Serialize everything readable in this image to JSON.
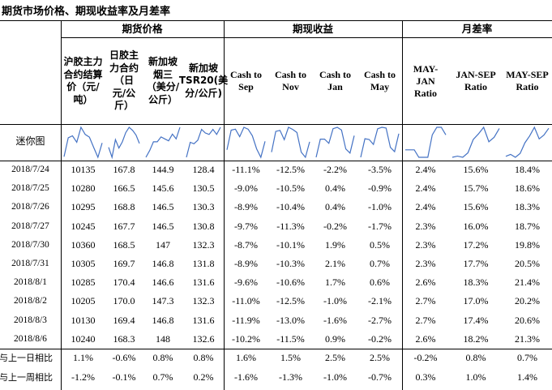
{
  "title": "期货市场价格、期现收益率及月差率",
  "groups": [
    "期货价格",
    "期现收益",
    "月差率"
  ],
  "columns": [
    "沪胶主力合约结算价（元/吨）",
    "日胶主力合约（日元/公斤）",
    "新加坡烟三（美分/公斤）",
    "新加坡TSR20(美分/公斤)",
    "Cash to Sep",
    "Cash to Nov",
    "Cash to Jan",
    "Cash to May",
    "MAY-JAN Ratio",
    "JAN-SEP Ratio",
    "MAY-SEP Ratio"
  ],
  "sparkline_label": "迷你图",
  "rows": [
    {
      "label": "2018/7/24",
      "values": [
        "10135",
        "167.8",
        "144.9",
        "128.4",
        "-11.1%",
        "-12.5%",
        "-2.2%",
        "-3.5%",
        "2.4%",
        "15.6%",
        "18.4%"
      ]
    },
    {
      "label": "2018/7/25",
      "values": [
        "10280",
        "166.5",
        "145.6",
        "130.5",
        "-9.0%",
        "-10.5%",
        "0.4%",
        "-0.9%",
        "2.4%",
        "15.7%",
        "18.6%"
      ]
    },
    {
      "label": "2018/7/26",
      "values": [
        "10295",
        "168.8",
        "146.5",
        "130.3",
        "-8.9%",
        "-10.4%",
        "0.4%",
        "-1.0%",
        "2.4%",
        "15.6%",
        "18.3%"
      ]
    },
    {
      "label": "2018/7/27",
      "values": [
        "10245",
        "167.7",
        "146.5",
        "130.8",
        "-9.7%",
        "-11.3%",
        "-0.2%",
        "-1.7%",
        "2.3%",
        "16.0%",
        "18.7%"
      ]
    },
    {
      "label": "2018/7/30",
      "values": [
        "10360",
        "168.5",
        "147",
        "132.3",
        "-8.7%",
        "-10.1%",
        "1.9%",
        "0.5%",
        "2.3%",
        "17.2%",
        "19.8%"
      ]
    },
    {
      "label": "2018/7/31",
      "values": [
        "10305",
        "169.7",
        "146.8",
        "131.8",
        "-8.9%",
        "-10.3%",
        "2.1%",
        "0.7%",
        "2.3%",
        "17.7%",
        "20.5%"
      ]
    },
    {
      "label": "2018/8/1",
      "values": [
        "10285",
        "170.4",
        "146.6",
        "131.6",
        "-9.6%",
        "-10.6%",
        "1.7%",
        "0.6%",
        "2.6%",
        "18.3%",
        "21.4%"
      ]
    },
    {
      "label": "2018/8/2",
      "values": [
        "10205",
        "170.0",
        "147.3",
        "132.3",
        "-11.0%",
        "-12.5%",
        "-1.0%",
        "-2.1%",
        "2.7%",
        "17.0%",
        "20.2%"
      ]
    },
    {
      "label": "2018/8/3",
      "values": [
        "10130",
        "169.4",
        "146.8",
        "131.6",
        "-11.9%",
        "-13.0%",
        "-1.6%",
        "-2.7%",
        "2.7%",
        "17.4%",
        "20.6%"
      ]
    },
    {
      "label": "2018/8/6",
      "values": [
        "10240",
        "168.3",
        "148",
        "132.6",
        "-10.2%",
        "-11.5%",
        "0.9%",
        "-0.2%",
        "2.6%",
        "18.2%",
        "21.3%"
      ]
    }
  ],
  "summary": [
    {
      "label": "与上一日相比",
      "values": [
        "1.1%",
        "-0.6%",
        "0.8%",
        "0.8%",
        "1.6%",
        "1.5%",
        "2.5%",
        "2.5%",
        "-0.2%",
        "0.8%",
        "0.7%"
      ]
    },
    {
      "label": "与上一周相比",
      "values": [
        "-1.2%",
        "-0.1%",
        "0.7%",
        "0.2%",
        "-1.6%",
        "-1.3%",
        "-1.0%",
        "-0.7%",
        "0.3%",
        "1.0%",
        "1.4%"
      ]
    }
  ],
  "colors": {
    "sparkline": "#4472c4",
    "border": "#000000"
  }
}
